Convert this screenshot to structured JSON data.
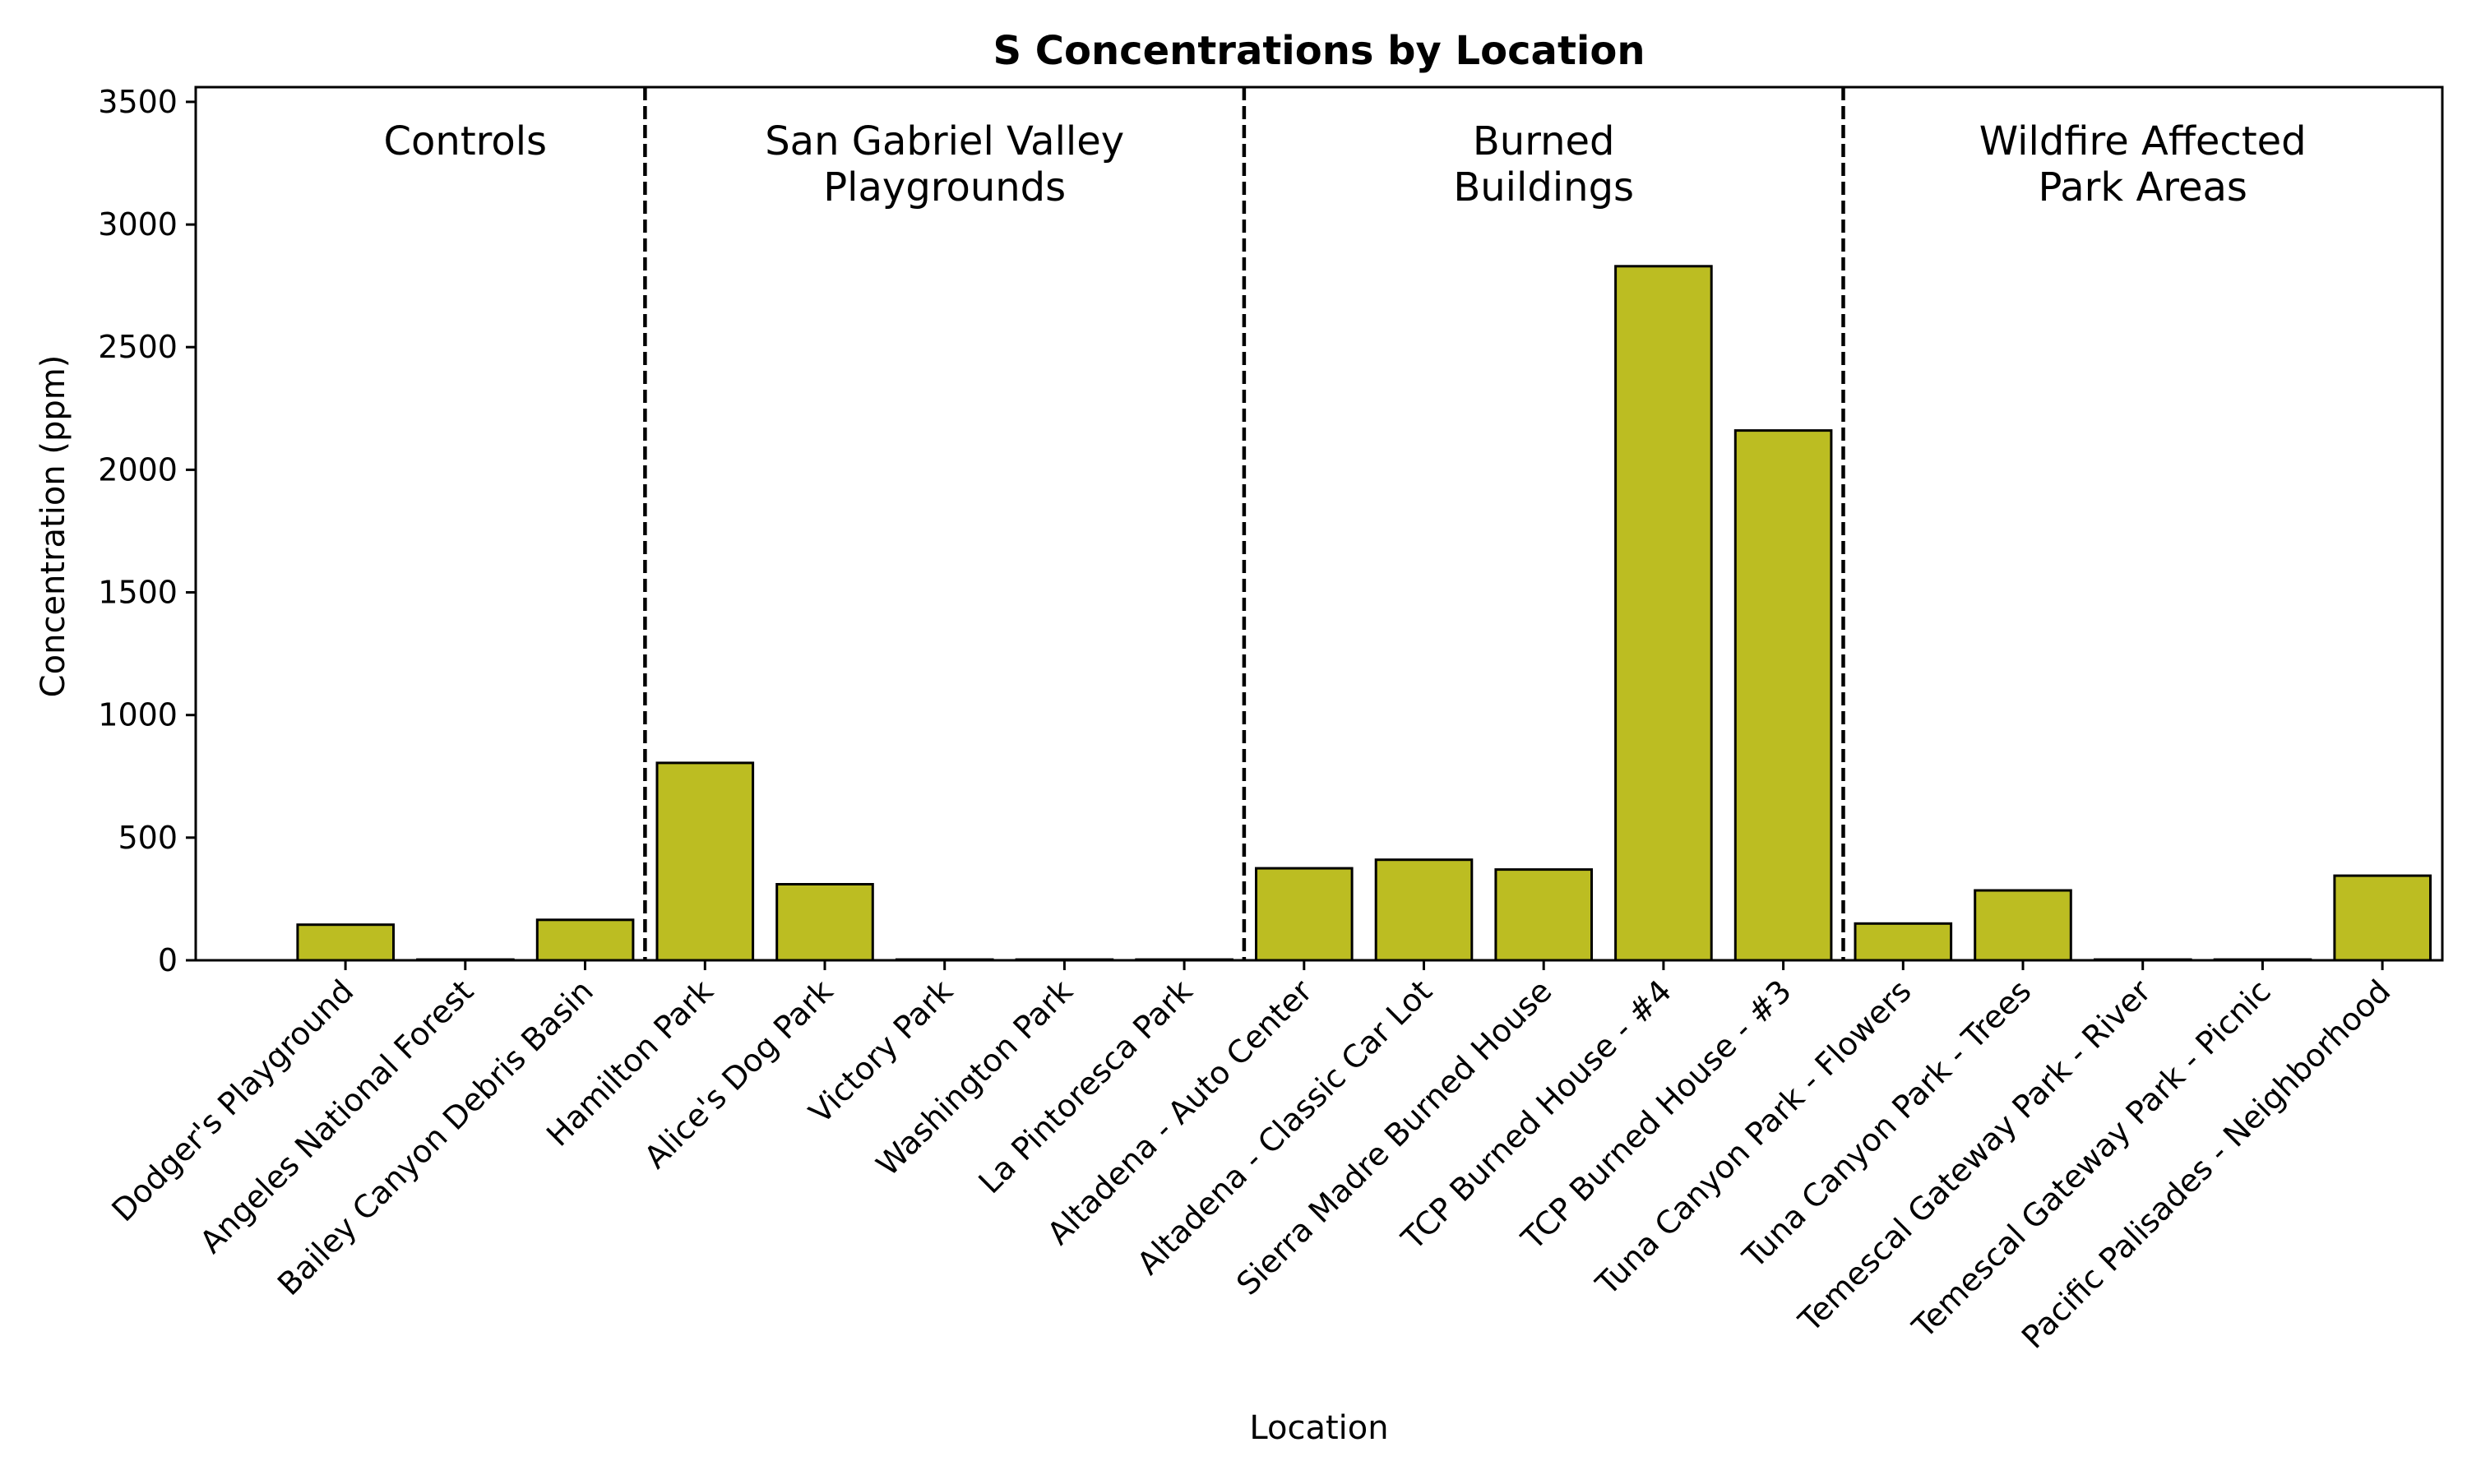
{
  "chart_data": {
    "type": "bar",
    "title": "S Concentrations by Location",
    "xlabel": "Location",
    "ylabel": "Concentration (ppm)",
    "ylim": [
      0,
      3560
    ],
    "yticks": [
      0,
      500,
      1000,
      1500,
      2000,
      2500,
      3000,
      3500
    ],
    "grid": false,
    "bar_color": "#bcbd22",
    "edge_color": "#000000",
    "categories": [
      "Dodger's Playground",
      "Angeles National Forest",
      "Bailey Canyon Debris Basin",
      "Hamilton Park",
      "Alice's Dog Park",
      "Victory Park",
      "Washington Park",
      "La Pintoresca Park",
      "Altadena - Auto Center",
      "Altadena - Classic Car Lot",
      "Sierra Madre Burned House",
      "TCP Burned House - #4",
      "TCP Burned House - #3",
      "Tuna Canyon Park - Flowers",
      "Tuna Canyon Park - Trees",
      "Temescal Gateway Park - River",
      "Temescal Gateway Park - Picnic",
      "Pacific Palisades - Neighborhood"
    ],
    "values": [
      145,
      3,
      165,
      805,
      310,
      3,
      3,
      3,
      375,
      410,
      370,
      2830,
      2160,
      150,
      285,
      3,
      3,
      345
    ],
    "groups": [
      {
        "lines": [
          "Controls"
        ],
        "start": 0,
        "end": 2
      },
      {
        "lines": [
          "San Gabriel Valley",
          "Playgrounds"
        ],
        "start": 3,
        "end": 7
      },
      {
        "lines": [
          "Burned",
          "Buildings"
        ],
        "start": 8,
        "end": 12
      },
      {
        "lines": [
          "Wildfire Affected",
          "Park Areas"
        ],
        "start": 13,
        "end": 17
      }
    ],
    "separators_after_index": [
      2,
      7,
      12
    ]
  }
}
